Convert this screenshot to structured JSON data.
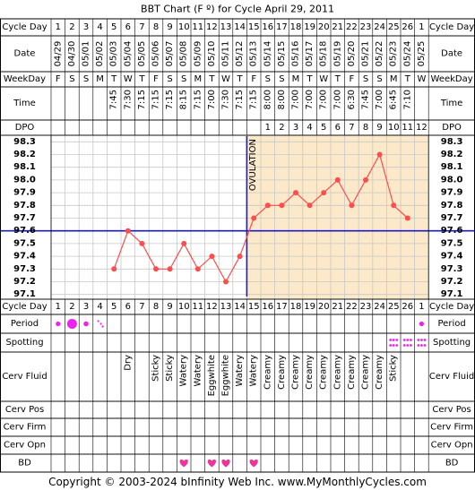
{
  "title": "BBT Chart (F º) for Cycle April 29, 2011",
  "row_labels": {
    "cycle_day": "Cycle Day",
    "date": "Date",
    "weekday": "WeekDay",
    "time": "Time",
    "dpo": "DPO",
    "period": "Period",
    "spotting": "Spotting",
    "cerv_fluid": "Cerv Fluid",
    "cerv_pos": "Cerv Pos",
    "cerv_firm": "Cerv Firm",
    "cerv_opn": "Cerv Opn",
    "bd": "BD"
  },
  "columns": {
    "cycle_day": [
      "1",
      "2",
      "3",
      "4",
      "5",
      "6",
      "7",
      "8",
      "9",
      "10",
      "11",
      "12",
      "13",
      "14",
      "15",
      "16",
      "17",
      "18",
      "19",
      "20",
      "21",
      "22",
      "23",
      "24",
      "25",
      "26",
      "1"
    ],
    "date": [
      "04/29",
      "04/30",
      "05/01",
      "05/02",
      "05/03",
      "05/04",
      "05/05",
      "05/06",
      "05/07",
      "05/08",
      "05/09",
      "05/10",
      "05/11",
      "05/12",
      "05/13",
      "05/14",
      "05/15",
      "05/16",
      "05/17",
      "05/18",
      "05/19",
      "05/20",
      "05/21",
      "05/22",
      "05/23",
      "05/24",
      "05/25"
    ],
    "weekday": [
      "F",
      "S",
      "S",
      "M",
      "T",
      "W",
      "T",
      "F",
      "S",
      "S",
      "M",
      "T",
      "W",
      "T",
      "F",
      "S",
      "S",
      "M",
      "T",
      "W",
      "T",
      "F",
      "S",
      "S",
      "M",
      "T",
      "W"
    ],
    "time": [
      "",
      "",
      "",
      "",
      "7:45",
      "7:30",
      "7:15",
      "7:15",
      "7:15",
      "8:15",
      "7:15",
      "7:00",
      "7:30",
      "7:15",
      "7:15",
      "8:00",
      "8:00",
      "7:00",
      "7:00",
      "7:00",
      "7:00",
      "6:30",
      "7:45",
      "7:00",
      "6:45",
      "7:10",
      ""
    ],
    "dpo": [
      "",
      "",
      "",
      "",
      "",
      "",
      "",
      "",
      "",
      "",
      "",
      "",
      "",
      "",
      "",
      "1",
      "2",
      "3",
      "4",
      "5",
      "6",
      "7",
      "8",
      "9",
      "10",
      "11",
      "12"
    ],
    "period": [
      "spot",
      "heavy",
      "medium",
      "light",
      "",
      "",
      "",
      "",
      "",
      "",
      "",
      "",
      "",
      "",
      "",
      "",
      "",
      "",
      "",
      "",
      "",
      "",
      "",
      "",
      "",
      "",
      "spot"
    ],
    "spotting": [
      "",
      "",
      "",
      "",
      "",
      "",
      "",
      "",
      "",
      "",
      "",
      "",
      "",
      "",
      "",
      "",
      "",
      "",
      "",
      "",
      "",
      "",
      "",
      "",
      "spotting",
      "spotting",
      "spotting"
    ],
    "cerv_fluid": [
      "",
      "",
      "",
      "",
      "",
      "Dry",
      "",
      "Sticky",
      "Sticky",
      "Watery",
      "Watery",
      "Eggwhite",
      "Eggwhite",
      "Watery",
      "Watery",
      "Creamy",
      "Creamy",
      "Creamy",
      "Creamy",
      "Creamy",
      "Creamy",
      "Creamy",
      "Creamy",
      "Creamy",
      "Sticky",
      "",
      ""
    ],
    "bd": [
      "",
      "",
      "",
      "",
      "",
      "",
      "",
      "",
      "",
      "heart",
      "",
      "heart",
      "heart",
      "",
      "heart",
      "",
      "",
      "",
      "",
      "",
      "",
      "",
      "",
      "",
      "",
      "",
      ""
    ]
  },
  "ovulation_label": "OVULATION",
  "copyright": "Copyright © 2003-2024 bInfinity Web Inc.     www.MyMonthlyCycles.com",
  "colors": {
    "grid_line": "#c8c8c8",
    "border": "#000000",
    "temp_line": "#ff4d4d",
    "coverline": "#1a1acc",
    "ovulation_line": "#1a1acc",
    "luteal_fill": "#fbe9c9",
    "period_dot": "#ee22ee",
    "spotting_dot": "#ee22ee",
    "heart": "#ee3399"
  },
  "chart_data": {
    "type": "line",
    "title": "BBT Chart (F º) for Cycle April 29, 2011",
    "x": [
      5,
      6,
      7,
      8,
      9,
      10,
      11,
      12,
      13,
      14,
      15,
      16,
      17,
      18,
      19,
      20,
      21,
      22,
      23,
      24,
      25,
      26
    ],
    "x_dates": [
      "05/03",
      "05/04",
      "05/05",
      "05/06",
      "05/07",
      "05/08",
      "05/09",
      "05/10",
      "05/11",
      "05/12",
      "05/13",
      "05/14",
      "05/15",
      "05/16",
      "05/17",
      "05/18",
      "05/19",
      "05/20",
      "05/21",
      "05/22",
      "05/23",
      "05/24"
    ],
    "series": [
      {
        "values": [
          97.3,
          97.6,
          97.5,
          97.3,
          97.3,
          97.5,
          97.3,
          97.4,
          97.2,
          97.4,
          97.7,
          97.8,
          97.8,
          97.9,
          97.8,
          97.9,
          98.0,
          97.8,
          98.0,
          98.2,
          97.8,
          97.7
        ]
      }
    ],
    "y_ticks": [
      "98.3",
      "98.2",
      "98.1",
      "98.0",
      "97.9",
      "97.8",
      "97.7",
      "97.6",
      "97.5",
      "97.4",
      "97.3",
      "97.2",
      "97.1"
    ],
    "ylim": [
      97.1,
      98.3
    ],
    "coverline": 97.6,
    "ovulation_day": 14,
    "grid": true
  }
}
